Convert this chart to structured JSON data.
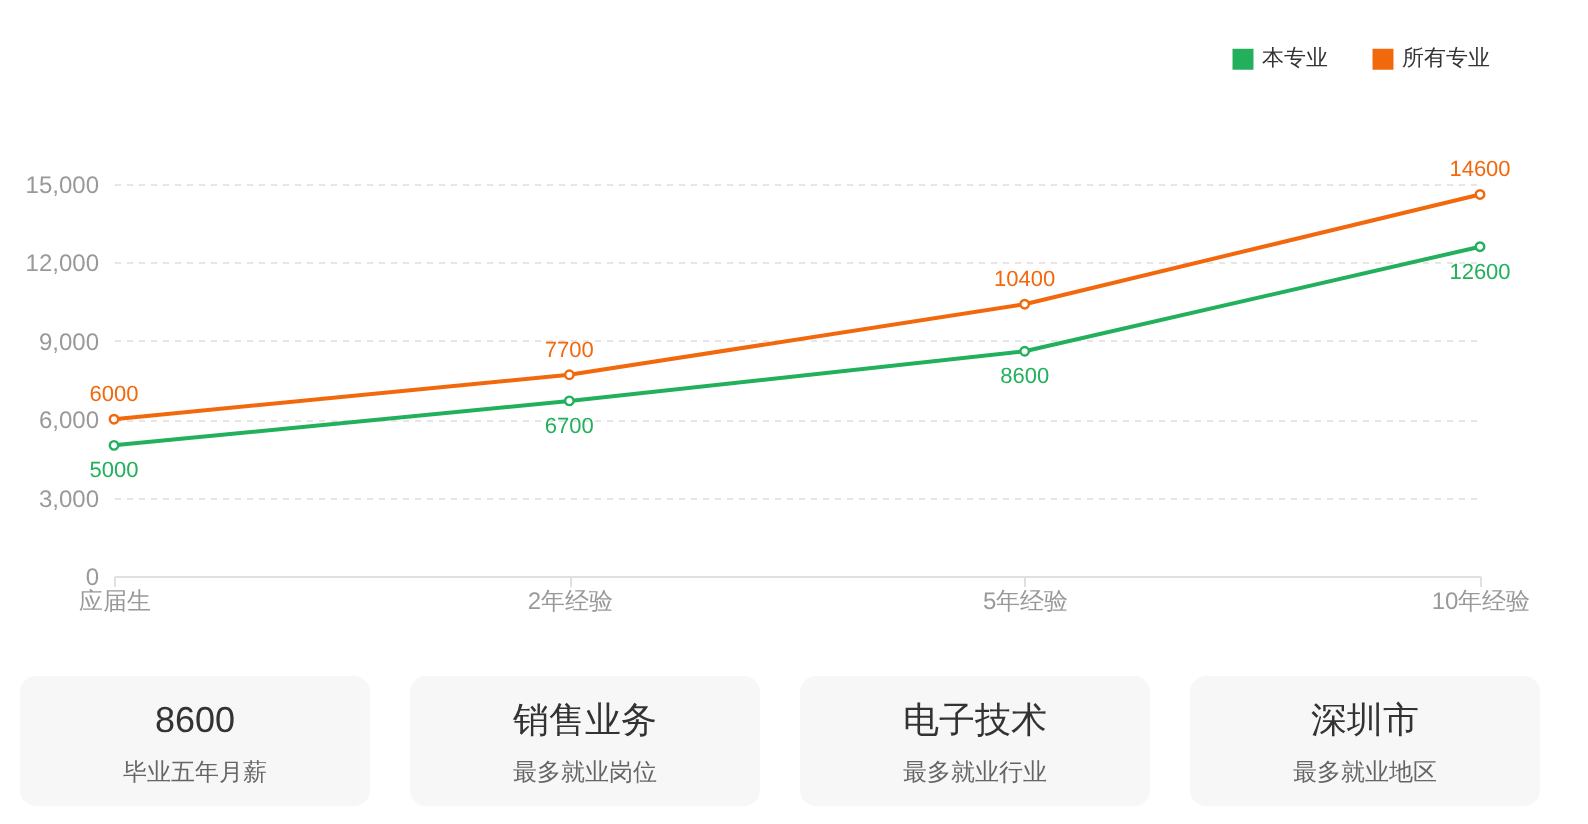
{
  "chart_data": [
    {
      "type": "line",
      "categories": [
        "应届生",
        "2年经验",
        "5年经验",
        "10年经验"
      ],
      "series": [
        {
          "name": "本专业",
          "color": "#22b05c",
          "values": [
            5000,
            6700,
            8600,
            12600
          ]
        },
        {
          "name": "所有专业",
          "color": "#f2690d",
          "values": [
            6000,
            7700,
            10400,
            14600
          ]
        }
      ],
      "ylim": [
        0,
        15000
      ],
      "yticks": [
        0,
        {
          "value": 3000,
          "label": "3,000"
        },
        {
          "value": 6000,
          "label": "6,000"
        },
        {
          "value": 9000,
          "label": "9,000"
        },
        {
          "value": 12000,
          "label": "12,000"
        },
        {
          "value": 15000,
          "label": "15,000"
        }
      ],
      "grid": "y",
      "legend": "top right",
      "marker": "circle",
      "line_style": "solid",
      "data_labels": true
    },
    {
      "type": "other",
      "title": "8600",
      "subtitle": "毕业五年月薪"
    },
    {
      "type": "other",
      "title": "销售业务",
      "subtitle": "最多就业岗位"
    },
    {
      "type": "other",
      "title": "电子技术",
      "subtitle": "最多就业行业"
    },
    {
      "type": "other",
      "title": "深圳市",
      "subtitle": "最多就业地区"
    }
  ]
}
